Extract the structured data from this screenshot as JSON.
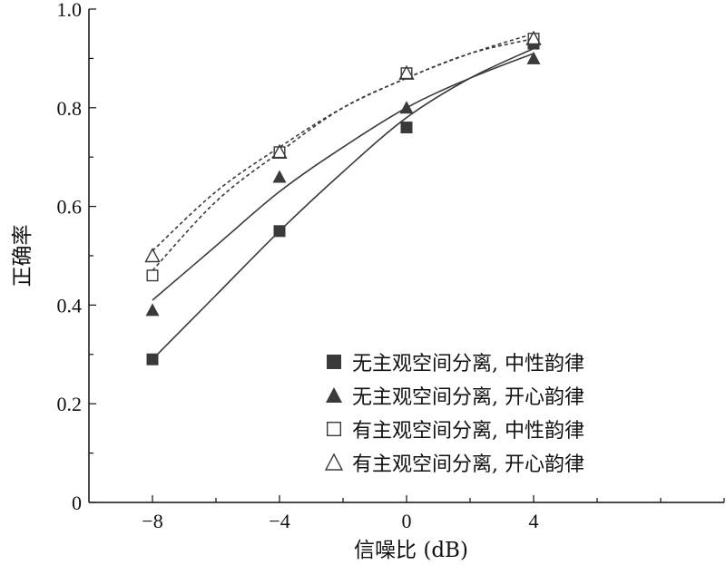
{
  "chart_data": {
    "type": "scatter",
    "xlabel": "信噪比 (dB)",
    "ylabel": "正确率",
    "xlim": [
      -10,
      10
    ],
    "ylim": [
      0,
      1.0
    ],
    "xticks": [
      -8,
      -4,
      0,
      4
    ],
    "xtick_labels": [
      "−8",
      "−4",
      "0",
      "4"
    ],
    "yticks": [
      0,
      0.2,
      0.4,
      0.6,
      0.8,
      1.0
    ],
    "ytick_labels": [
      "0",
      "0.2",
      "0.4",
      "0.6",
      "0.8",
      "1.0"
    ],
    "legend_position": "bottom-right",
    "grid": false,
    "series": [
      {
        "name": "无主观空间分离, 中性韵律",
        "marker": "filled-square",
        "line": "solid",
        "x": [
          -8,
          -4,
          0,
          4
        ],
        "y": [
          0.29,
          0.55,
          0.76,
          0.93
        ],
        "fit": {
          "x": [
            -8,
            -6,
            -4,
            -2,
            0,
            2,
            4
          ],
          "y": [
            0.29,
            0.42,
            0.55,
            0.67,
            0.78,
            0.86,
            0.92
          ]
        }
      },
      {
        "name": "无主观空间分离, 开心韵律",
        "marker": "filled-triangle",
        "line": "solid",
        "x": [
          -8,
          -4,
          0,
          4
        ],
        "y": [
          0.39,
          0.66,
          0.8,
          0.9
        ],
        "fit": {
          "x": [
            -8,
            -6,
            -4,
            -2,
            0,
            2,
            4
          ],
          "y": [
            0.41,
            0.52,
            0.63,
            0.72,
            0.8,
            0.86,
            0.91
          ]
        }
      },
      {
        "name": "有主观空间分离, 中性韵律",
        "marker": "open-square",
        "line": "dashed",
        "x": [
          -8,
          -4,
          0,
          4
        ],
        "y": [
          0.46,
          0.71,
          0.87,
          0.94
        ],
        "fit": {
          "x": [
            -8,
            -6,
            -4,
            -2,
            0,
            2,
            4
          ],
          "y": [
            0.47,
            0.61,
            0.71,
            0.8,
            0.86,
            0.91,
            0.94
          ]
        }
      },
      {
        "name": "有主观空间分离, 开心韵律",
        "marker": "open-triangle",
        "line": "dashed",
        "x": [
          -8,
          -4,
          0,
          4
        ],
        "y": [
          0.5,
          0.71,
          0.87,
          0.94
        ],
        "fit": {
          "x": [
            -8,
            -6,
            -4,
            -2,
            0,
            2,
            4
          ],
          "y": [
            0.51,
            0.63,
            0.72,
            0.8,
            0.86,
            0.91,
            0.95
          ]
        }
      }
    ]
  },
  "colors": {
    "axis": "#111111",
    "marker": "#3a3a3a",
    "fit_line": "#3a3a3a"
  }
}
